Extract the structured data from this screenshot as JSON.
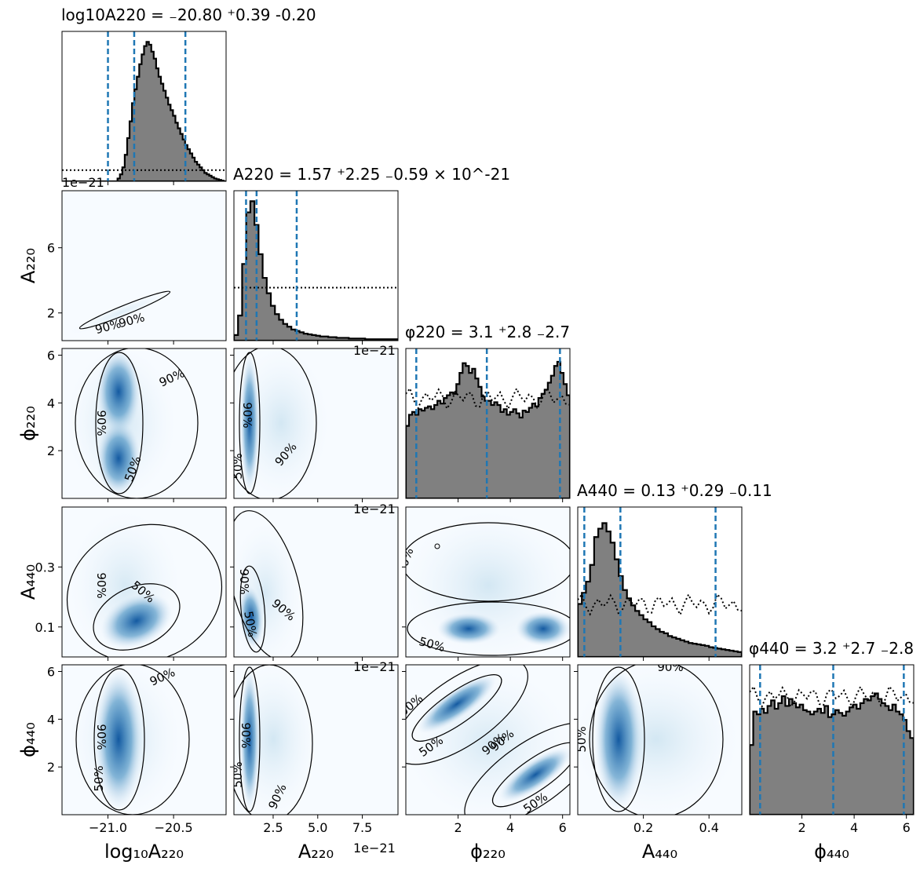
{
  "chart_data": {
    "type": "corner",
    "parameters": [
      {
        "key": "logA220",
        "label": "log10A220",
        "title": "log10A220 = -20.80 +0.39 -0.20",
        "range": [
          -21.35,
          -20.1
        ],
        "ticks": [
          -21.0,
          -20.5
        ],
        "ticklabels": [
          "-21.0",
          "-20.5"
        ],
        "quantiles": [
          -21.0,
          -20.8,
          -20.41
        ]
      },
      {
        "key": "A220",
        "label": "A220",
        "title": "A220 = 1.57 +2.25 -0.59 × 10^-21",
        "range": [
          0.3,
          9.5
        ],
        "ticks": [
          2.5,
          5.0,
          7.5
        ],
        "ticklabels": [
          "2.5",
          "5.0",
          "7.5"
        ],
        "yticks": [
          2,
          6
        ],
        "yticklabels": [
          "2",
          "6"
        ],
        "offset": "1e−21",
        "quantiles": [
          0.98,
          1.57,
          3.82
        ]
      },
      {
        "key": "phi220",
        "label": "φ220",
        "title": "φ220 = 3.1 +2.8 -2.7",
        "range": [
          0,
          6.28
        ],
        "ticks": [
          2,
          4,
          6
        ],
        "ticklabels": [
          "2",
          "4",
          "6"
        ],
        "quantiles": [
          0.4,
          3.1,
          5.9
        ]
      },
      {
        "key": "A440",
        "label": "A440",
        "title": "A440 = 0.13 +0.29 -0.11",
        "range": [
          0,
          0.5
        ],
        "ticks": [
          0.2,
          0.4
        ],
        "ticklabels": [
          "0.2",
          "0.4"
        ],
        "yticks": [
          0.1,
          0.3
        ],
        "yticklabels": [
          "0.1",
          "0.3"
        ],
        "quantiles": [
          0.02,
          0.13,
          0.42
        ]
      },
      {
        "key": "phi440",
        "label": "φ440",
        "title": "φ440 = 3.2 +2.7 -2.8",
        "range": [
          0,
          6.28
        ],
        "ticks": [
          2,
          4,
          6
        ],
        "ticklabels": [
          "2",
          "4",
          "6"
        ],
        "quantiles": [
          0.4,
          3.2,
          5.9
        ]
      }
    ],
    "histograms": {
      "logA220": [
        0,
        0,
        0,
        0,
        0,
        0,
        0,
        0,
        0,
        0,
        0,
        0,
        0,
        0,
        0,
        0,
        0,
        0,
        0,
        0,
        0,
        0,
        0,
        0.02,
        0.05,
        0.1,
        0.19,
        0.31,
        0.43,
        0.56,
        0.66,
        0.75,
        0.84,
        0.91,
        0.97,
        1.0,
        0.98,
        0.93,
        0.88,
        0.81,
        0.75,
        0.7,
        0.65,
        0.6,
        0.55,
        0.51,
        0.47,
        0.42,
        0.38,
        0.34,
        0.3,
        0.26,
        0.23,
        0.2,
        0.17,
        0.14,
        0.12,
        0.1,
        0.08,
        0.06,
        0.05,
        0.04,
        0.03,
        0.02,
        0.015,
        0.01,
        0.005,
        0
      ],
      "A220": [
        0.04,
        0.18,
        0.55,
        0.92,
        1.0,
        0.83,
        0.62,
        0.45,
        0.34,
        0.25,
        0.19,
        0.15,
        0.12,
        0.1,
        0.08,
        0.07,
        0.06,
        0.05,
        0.045,
        0.04,
        0.035,
        0.03,
        0.03,
        0.025,
        0.025,
        0.02,
        0.02,
        0.02,
        0.015,
        0.015,
        0.015,
        0.015,
        0.01,
        0.01,
        0.01,
        0.01,
        0.01,
        0.01,
        0.01,
        0.01
      ],
      "phi220": [
        0.52,
        0.6,
        0.62,
        0.6,
        0.64,
        0.63,
        0.65,
        0.66,
        0.64,
        0.67,
        0.7,
        0.68,
        0.72,
        0.74,
        0.76,
        0.75,
        0.82,
        0.9,
        0.97,
        0.95,
        0.9,
        0.93,
        0.86,
        0.8,
        0.73,
        0.7,
        0.7,
        0.67,
        0.69,
        0.67,
        0.62,
        0.64,
        0.6,
        0.62,
        0.64,
        0.61,
        0.58,
        0.63,
        0.62,
        0.65,
        0.68,
        0.66,
        0.72,
        0.75,
        0.78,
        0.83,
        0.88,
        0.95,
        0.98,
        0.9,
        0.82,
        0.74
      ],
      "A440": [
        0.38,
        0.46,
        0.54,
        0.66,
        0.86,
        0.92,
        0.96,
        0.9,
        0.82,
        0.7,
        0.58,
        0.48,
        0.42,
        0.37,
        0.33,
        0.3,
        0.27,
        0.25,
        0.22,
        0.2,
        0.18,
        0.17,
        0.15,
        0.14,
        0.13,
        0.12,
        0.11,
        0.1,
        0.095,
        0.09,
        0.085,
        0.08,
        0.07,
        0.065,
        0.06,
        0.055,
        0.05,
        0.045,
        0.04,
        0.035
      ],
      "phi440": [
        0.5,
        0.74,
        0.72,
        0.76,
        0.73,
        0.78,
        0.82,
        0.76,
        0.8,
        0.85,
        0.78,
        0.83,
        0.8,
        0.77,
        0.79,
        0.75,
        0.74,
        0.72,
        0.74,
        0.76,
        0.73,
        0.78,
        0.7,
        0.72,
        0.75,
        0.73,
        0.71,
        0.74,
        0.77,
        0.79,
        0.76,
        0.8,
        0.83,
        0.82,
        0.85,
        0.87,
        0.83,
        0.8,
        0.78,
        0.75,
        0.79,
        0.74,
        0.72,
        0.68,
        0.6,
        0.55
      ]
    },
    "prior_lines": {
      "logA220": 0.08,
      "A220": 0.38,
      "phi220": 0.72,
      "A440": 0.38,
      "phi440": 0.85
    },
    "contour_levels": [
      "50%",
      "90%"
    ],
    "colors": {
      "hist_fill": "#808080",
      "hist_edge": "#000000",
      "quantile_line": "#1f77b4",
      "density": "#08519c"
    },
    "grid": false
  }
}
